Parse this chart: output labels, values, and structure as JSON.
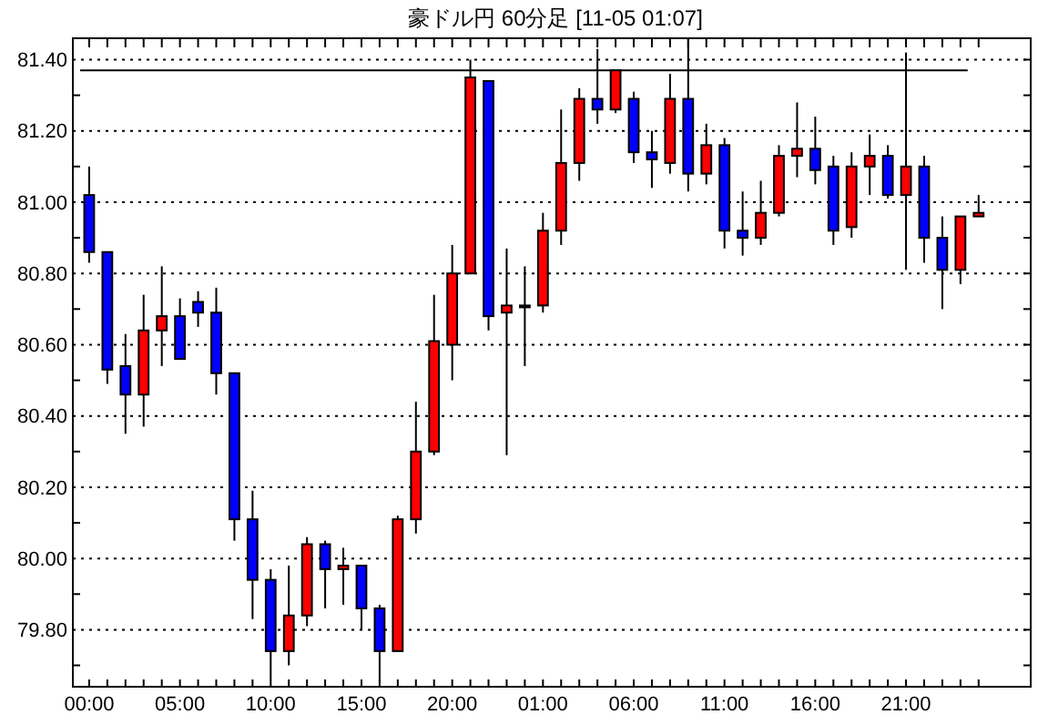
{
  "chart_data": {
    "type": "candlestick",
    "title": "豪ドル円 60分足 [11-05 01:07]",
    "categories": [
      "00:00",
      null,
      null,
      null,
      null,
      "05:00",
      null,
      null,
      null,
      null,
      "10:00",
      null,
      null,
      null,
      null,
      "15:00",
      null,
      null,
      null,
      null,
      "20:00",
      null,
      null,
      null,
      null,
      "01:00",
      null,
      null,
      null,
      null,
      "06:00",
      null,
      null,
      null,
      null,
      "11:00",
      null,
      null,
      null,
      null,
      "16:00",
      null,
      null,
      null,
      null,
      "21:00",
      null,
      null,
      null,
      null
    ],
    "ohlc": [
      [
        81.02,
        81.1,
        80.83,
        80.86
      ],
      [
        80.86,
        80.86,
        80.49,
        80.53
      ],
      [
        80.54,
        80.63,
        80.35,
        80.46
      ],
      [
        80.46,
        80.74,
        80.37,
        80.64
      ],
      [
        80.64,
        80.82,
        80.54,
        80.68
      ],
      [
        80.68,
        80.73,
        80.56,
        80.56
      ],
      [
        80.72,
        80.75,
        80.65,
        80.69
      ],
      [
        80.69,
        80.76,
        80.46,
        80.52
      ],
      [
        80.52,
        80.52,
        80.05,
        80.11
      ],
      [
        80.11,
        80.19,
        79.83,
        79.94
      ],
      [
        79.94,
        79.97,
        79.66,
        79.74
      ],
      [
        79.74,
        79.98,
        79.7,
        79.84
      ],
      [
        79.84,
        80.06,
        79.81,
        80.04
      ],
      [
        80.04,
        80.05,
        79.86,
        79.97
      ],
      [
        79.97,
        80.03,
        79.87,
        79.98
      ],
      [
        79.98,
        79.98,
        79.8,
        79.86
      ],
      [
        79.86,
        79.87,
        79.65,
        79.74
      ],
      [
        79.74,
        80.12,
        79.74,
        80.11
      ],
      [
        80.11,
        80.44,
        80.07,
        80.3
      ],
      [
        80.3,
        80.74,
        80.29,
        80.61
      ],
      [
        80.6,
        80.88,
        80.5,
        80.8
      ],
      [
        80.8,
        81.4,
        80.8,
        81.35
      ],
      [
        81.34,
        81.34,
        80.64,
        80.68
      ],
      [
        80.69,
        80.87,
        80.29,
        80.71
      ],
      [
        80.71,
        80.82,
        80.54,
        80.71
      ],
      [
        80.71,
        80.97,
        80.69,
        80.92
      ],
      [
        80.92,
        81.26,
        80.88,
        81.11
      ],
      [
        81.11,
        81.32,
        81.06,
        81.29
      ],
      [
        81.29,
        81.43,
        81.22,
        81.26
      ],
      [
        81.26,
        81.37,
        81.25,
        81.37
      ],
      [
        81.29,
        81.31,
        81.11,
        81.14
      ],
      [
        81.14,
        81.2,
        81.04,
        81.12
      ],
      [
        81.11,
        81.36,
        81.08,
        81.29
      ],
      [
        81.29,
        81.46,
        81.03,
        81.08
      ],
      [
        81.08,
        81.22,
        81.05,
        81.16
      ],
      [
        81.16,
        81.18,
        80.87,
        80.92
      ],
      [
        80.92,
        81.03,
        80.85,
        80.9
      ],
      [
        80.9,
        81.06,
        80.88,
        80.97
      ],
      [
        80.97,
        81.16,
        80.96,
        81.13
      ],
      [
        81.13,
        81.28,
        81.07,
        81.15
      ],
      [
        81.15,
        81.24,
        81.05,
        81.09
      ],
      [
        81.1,
        81.13,
        80.88,
        80.92
      ],
      [
        80.93,
        81.14,
        80.9,
        81.1
      ],
      [
        81.1,
        81.19,
        81.02,
        81.13
      ],
      [
        81.13,
        81.16,
        81.01,
        81.02
      ],
      [
        81.02,
        81.42,
        80.81,
        81.1
      ],
      [
        81.1,
        81.13,
        80.83,
        80.9
      ],
      [
        80.9,
        80.96,
        80.7,
        80.81
      ],
      [
        80.81,
        80.96,
        80.77,
        80.96
      ],
      [
        80.96,
        81.02,
        80.96,
        80.97
      ]
    ],
    "colors": [
      "#0000ff",
      "#0000ff",
      "#0000ff",
      "#ff0000",
      "#ff0000",
      "#0000ff",
      "#0000ff",
      "#0000ff",
      "#0000ff",
      "#0000ff",
      "#0000ff",
      "#ff0000",
      "#ff0000",
      "#0000ff",
      "#ff0000",
      "#0000ff",
      "#0000ff",
      "#ff0000",
      "#ff0000",
      "#ff0000",
      "#ff0000",
      "#ff0000",
      "#0000ff",
      "#ff0000",
      "#ff0000",
      "#ff0000",
      "#ff0000",
      "#ff0000",
      "#0000ff",
      "#ff0000",
      "#0000ff",
      "#0000ff",
      "#ff0000",
      "#0000ff",
      "#ff0000",
      "#0000ff",
      "#0000ff",
      "#ff0000",
      "#ff0000",
      "#ff0000",
      "#0000ff",
      "#0000ff",
      "#ff0000",
      "#ff0000",
      "#0000ff",
      "#ff0000",
      "#0000ff",
      "#0000ff",
      "#ff0000",
      "#ff0000"
    ],
    "ylim": [
      79.64,
      81.46
    ],
    "yticks": [
      {
        "value": 79.7,
        "label": null
      },
      {
        "value": 79.8,
        "label": "79.80"
      },
      {
        "value": 79.9,
        "label": null
      },
      {
        "value": 80.0,
        "label": "80.00"
      },
      {
        "value": 80.1,
        "label": null
      },
      {
        "value": 80.2,
        "label": "80.20"
      },
      {
        "value": 80.3,
        "label": null
      },
      {
        "value": 80.4,
        "label": "80.40"
      },
      {
        "value": 80.5,
        "label": null
      },
      {
        "value": 80.6,
        "label": "80.60"
      },
      {
        "value": 80.7,
        "label": null
      },
      {
        "value": 80.8,
        "label": "80.80"
      },
      {
        "value": 80.9,
        "label": null
      },
      {
        "value": 81.0,
        "label": "81.00"
      },
      {
        "value": 81.1,
        "label": null
      },
      {
        "value": 81.2,
        "label": "81.20"
      },
      {
        "value": 81.3,
        "label": null
      },
      {
        "value": 81.4,
        "label": "81.40"
      }
    ],
    "grid": "y",
    "ref_lines": [
      {
        "axis": "y",
        "value": 81.37,
        "color": "#000000"
      }
    ]
  }
}
